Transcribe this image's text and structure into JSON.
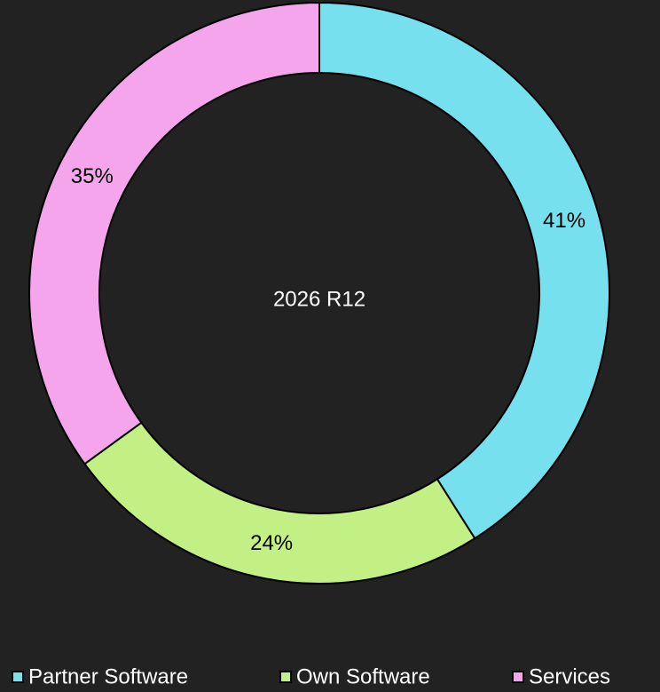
{
  "chart_data": {
    "type": "pie",
    "center_label": "2026 R12",
    "categories": [
      "Partner Software",
      "Own Software",
      "Services"
    ],
    "values": [
      41,
      24,
      35
    ],
    "value_labels": [
      "41%",
      "24%",
      "35%"
    ],
    "colors": [
      "#76e0ef",
      "#c2f084",
      "#f4a5ec"
    ],
    "legend": "bottom"
  }
}
